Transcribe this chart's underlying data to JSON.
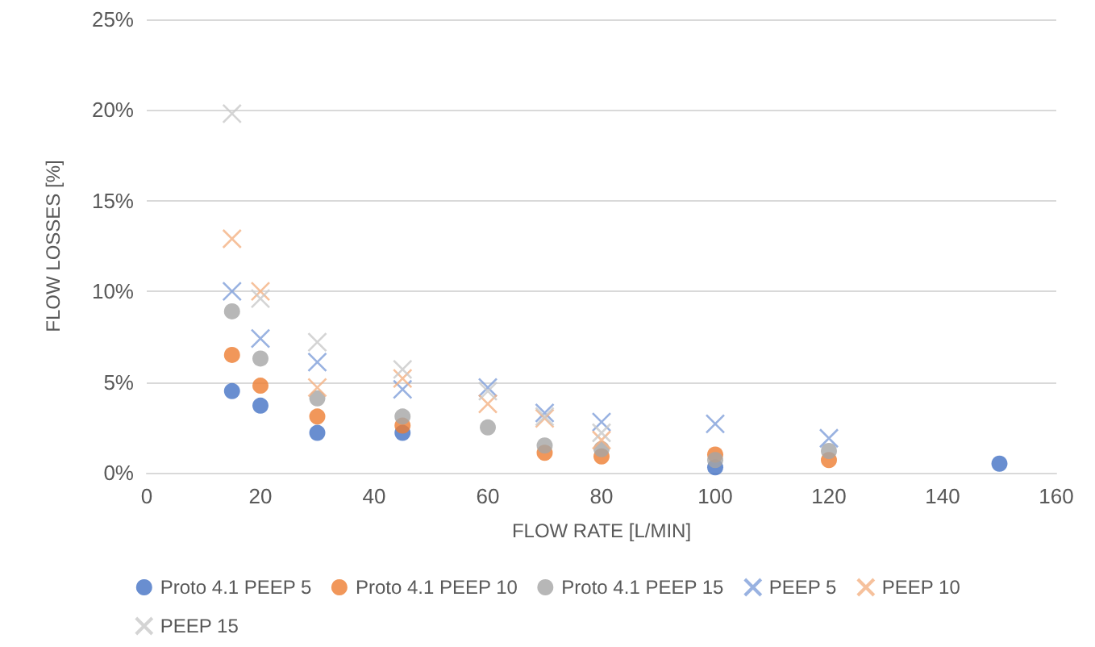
{
  "chart_data": {
    "type": "scatter",
    "xlabel": "FLOW RATE [L/MIN]",
    "ylabel": "FLOW LOSSES [%]",
    "x": [
      15,
      20,
      30,
      45,
      60,
      70,
      80,
      100,
      120
    ],
    "series": [
      {
        "name": "Proto 4.1 PEEP 5",
        "color": "#4472c4",
        "marker": "circle",
        "x": [
          15,
          20,
          30,
          45,
          60,
          70,
          80,
          100,
          120,
          150
        ],
        "values": [
          4.5,
          3.7,
          2.2,
          2.2,
          null,
          null,
          null,
          0.3,
          null,
          0.5
        ]
      },
      {
        "name": "Proto 4.1 PEEP 10",
        "color": "#ed7d31",
        "marker": "circle",
        "values": [
          6.5,
          4.8,
          3.1,
          2.6,
          null,
          1.1,
          0.9,
          1.0,
          0.7
        ]
      },
      {
        "name": "Proto 4.1 PEEP 15",
        "color": "#a5a5a5",
        "marker": "circle",
        "values": [
          8.9,
          6.3,
          4.1,
          3.1,
          2.5,
          1.5,
          1.3,
          0.7,
          1.2
        ]
      },
      {
        "name": "PEEP 5",
        "color": "#7f9fd9",
        "marker": "cross",
        "values": [
          10.0,
          7.4,
          6.1,
          4.6,
          4.7,
          3.3,
          2.8,
          2.7,
          1.9
        ]
      },
      {
        "name": "PEEP 10",
        "color": "#f4b183",
        "marker": "cross",
        "values": [
          12.9,
          10.0,
          4.7,
          5.2,
          3.8,
          3.0,
          1.8,
          null,
          null
        ]
      },
      {
        "name": "PEEP 15",
        "color": "#c9c9c9",
        "marker": "cross",
        "values": [
          19.8,
          9.6,
          7.2,
          5.7,
          4.5,
          3.1,
          2.2,
          null,
          null
        ]
      }
    ],
    "xlim": [
      0,
      160
    ],
    "xticks": [
      0,
      20,
      40,
      60,
      80,
      100,
      120,
      140,
      160
    ],
    "ylim": [
      0,
      25
    ],
    "yticks": [
      {
        "value": 0,
        "label": "0%"
      },
      {
        "value": 5,
        "label": "5%"
      },
      {
        "value": 10,
        "label": "10%"
      },
      {
        "value": 15,
        "label": "15%"
      },
      {
        "value": 20,
        "label": "20%"
      },
      {
        "value": 25,
        "label": "25%"
      }
    ],
    "grid": "y",
    "legend": "bottom"
  }
}
